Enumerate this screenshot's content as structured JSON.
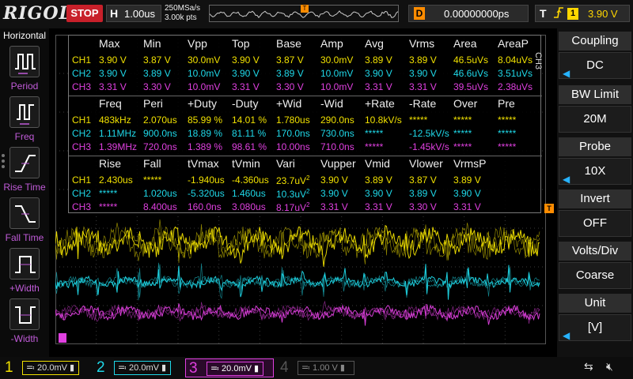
{
  "topbar": {
    "logo": "RIGOL",
    "run_state": "STOP",
    "horizontal_label": "H",
    "timebase": "1.00us",
    "sample_rate": "250MSa/s",
    "memory_depth": "3.00k pts",
    "trigger_marker": "T",
    "delay_label": "D",
    "delay_value": "0.00000000ps",
    "trigger_label": "T",
    "trigger_edge": "rising-edge-icon",
    "trigger_channel": "1",
    "trigger_level": "3.90 V"
  },
  "left_panel": {
    "title": "Horizontal",
    "items": [
      {
        "label": "Period",
        "icon": "period-icon"
      },
      {
        "label": "Freq",
        "icon": "freq-icon"
      },
      {
        "label": "Rise Time",
        "icon": "rise-time-icon"
      },
      {
        "label": "Fall Time",
        "icon": "fall-time-icon"
      },
      {
        "label": "+Width",
        "icon": "plus-width-icon"
      },
      {
        "label": "-Width",
        "icon": "minus-width-icon"
      }
    ]
  },
  "measurements": {
    "colors": {
      "CH1": "#f0e000",
      "CH2": "#1fd8e8",
      "CH3": "#e040e0"
    },
    "groups": [
      {
        "headers": [
          "Max",
          "Min",
          "Vpp",
          "Top",
          "Base",
          "Amp",
          "Avg",
          "Vrms",
          "Area",
          "AreaP"
        ],
        "rows": [
          {
            "ch": "CH1",
            "values": [
              "3.90 V",
              "3.87 V",
              "30.0mV",
              "3.90 V",
              "3.87 V",
              "30.0mV",
              "3.89 V",
              "3.89 V",
              "46.5uVs",
              "8.04uVs"
            ]
          },
          {
            "ch": "CH2",
            "values": [
              "3.90 V",
              "3.89 V",
              "10.0mV",
              "3.90 V",
              "3.89 V",
              "10.0mV",
              "3.90 V",
              "3.90 V",
              "46.6uVs",
              "3.51uVs"
            ]
          },
          {
            "ch": "CH3",
            "values": [
              "3.31 V",
              "3.30 V",
              "10.0mV",
              "3.31 V",
              "3.30 V",
              "10.0mV",
              "3.31 V",
              "3.31 V",
              "39.5uVs",
              "2.38uVs"
            ]
          }
        ]
      },
      {
        "headers": [
          "Freq",
          "Peri",
          "+Duty",
          "-Duty",
          "+Wid",
          "-Wid",
          "+Rate",
          "-Rate",
          "Over",
          "Pre"
        ],
        "rows": [
          {
            "ch": "CH1",
            "values": [
              "483kHz",
              "2.070us",
              "85.99 %",
              "14.01 %",
              "1.780us",
              "290.0ns",
              "10.8kV/s",
              "*****",
              "*****",
              "*****"
            ]
          },
          {
            "ch": "CH2",
            "values": [
              "1.11MHz",
              "900.0ns",
              "18.89 %",
              "81.11 %",
              "170.0ns",
              "730.0ns",
              "*****",
              "-12.5kV/s",
              "*****",
              "*****"
            ]
          },
          {
            "ch": "CH3",
            "values": [
              "1.39MHz",
              "720.0ns",
              "1.389 %",
              "98.61 %",
              "10.00ns",
              "710.0ns",
              "*****",
              "-1.45kV/s",
              "*****",
              "*****"
            ]
          }
        ]
      },
      {
        "headers": [
          "Rise",
          "Fall",
          "tVmax",
          "tVmin",
          "Vari",
          "Vupper",
          "Vmid",
          "Vlower",
          "VrmsP",
          ""
        ],
        "rows": [
          {
            "ch": "CH1",
            "values": [
              "2.430us",
              "*****",
              "-1.940us",
              "-4.360us",
              "23.7uV",
              "3.90 V",
              "3.89 V",
              "3.87 V",
              "3.89 V",
              ""
            ],
            "vari_sup": "2"
          },
          {
            "ch": "CH2",
            "values": [
              "*****",
              "1.020us",
              "-5.320us",
              "1.460us",
              "10.3uV",
              "3.90 V",
              "3.90 V",
              "3.89 V",
              "3.90 V",
              ""
            ],
            "vari_sup": "2"
          },
          {
            "ch": "CH3",
            "values": [
              "*****",
              "8.400us",
              "160.0ns",
              "3.080us",
              "8.17uV",
              "3.31 V",
              "3.31 V",
              "3.30 V",
              "3.31 V",
              ""
            ],
            "vari_sup": "2"
          }
        ]
      }
    ]
  },
  "waveform": {
    "trigger_level_marker": "T",
    "channel_colors": [
      "#f0e000",
      "#1fd8e8",
      "#e040e0"
    ]
  },
  "right_panel": {
    "channel_tag": "CH3",
    "items": [
      {
        "title": "Coupling",
        "value": "DC",
        "arrow": true
      },
      {
        "title": "BW Limit",
        "value": "20M",
        "arrow": false
      },
      {
        "title": "Probe",
        "value": "10X",
        "arrow": true
      },
      {
        "title": "Invert",
        "value": "OFF",
        "arrow": false
      },
      {
        "title": "Volts/Div",
        "value": "Coarse",
        "arrow": false
      },
      {
        "title": "Unit",
        "value": "[V]",
        "arrow": true
      }
    ]
  },
  "bottom_bar": {
    "channels": [
      {
        "num": "1",
        "scale": "20.0mV",
        "color": "#f0e000",
        "active": false
      },
      {
        "num": "2",
        "scale": "20.0mV",
        "color": "#1fd8e8",
        "active": false
      },
      {
        "num": "3",
        "scale": "20.0mV",
        "color": "#e040e0",
        "active": true
      },
      {
        "num": "4",
        "scale": "1.00 V",
        "color": "#555555",
        "active": false
      }
    ],
    "usb_icon": "usb-icon",
    "speaker_icon": "speaker-mute-icon"
  }
}
